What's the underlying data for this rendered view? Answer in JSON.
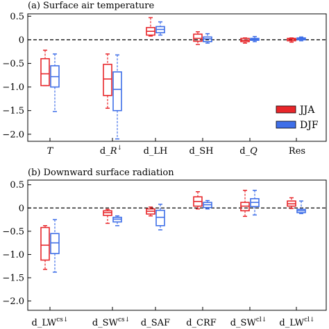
{
  "chart_data": [
    {
      "type": "box",
      "title": "(a) Surface air temperature",
      "ylim": [
        -2.15,
        0.55
      ],
      "yticks": [
        0.5,
        0,
        -0.5,
        -1.0,
        -1.5,
        -2.0
      ],
      "ytick_labels": [
        "0.5",
        "0",
        "−0.5",
        "−1.0",
        "−1.5",
        "−2.0"
      ],
      "zero_line": true,
      "categories": [
        {
          "label": "T",
          "italic": true,
          "sup": ""
        },
        {
          "label": "d_",
          "suffix_italic": "R",
          "sup": "↓"
        },
        {
          "label": "d_LH",
          "sup": ""
        },
        {
          "label": "d_SH",
          "sup": ""
        },
        {
          "label": "d_",
          "suffix_italic": "Q",
          "sup": ""
        },
        {
          "label": "Res",
          "sup": ""
        }
      ],
      "series": [
        {
          "name": "JJA",
          "color": "#e8262a",
          "boxes": [
            {
              "min": -0.97,
              "q1": -0.97,
              "median": -0.72,
              "q3": -0.4,
              "max": -0.22
            },
            {
              "min": -1.45,
              "q1": -1.18,
              "median": -0.83,
              "q3": -0.52,
              "max": -0.3
            },
            {
              "min": 0.08,
              "q1": 0.1,
              "median": 0.18,
              "q3": 0.26,
              "max": 0.47
            },
            {
              "min": -0.1,
              "q1": -0.03,
              "median": 0.03,
              "q3": 0.12,
              "max": 0.17
            },
            {
              "min": -0.07,
              "q1": -0.04,
              "median": -0.01,
              "q3": 0.03,
              "max": 0.04
            },
            {
              "min": -0.05,
              "q1": -0.02,
              "median": 0.01,
              "q3": 0.03,
              "max": 0.04
            }
          ]
        },
        {
          "name": "DJF",
          "color": "#3f6fe8",
          "boxes": [
            {
              "min": -1.52,
              "q1": -1.0,
              "median": -0.78,
              "q3": -0.55,
              "max": -0.3
            },
            {
              "min": -2.1,
              "q1": -1.5,
              "median": -1.05,
              "q3": -0.68,
              "max": -0.32
            },
            {
              "min": 0.1,
              "q1": 0.15,
              "median": 0.22,
              "q3": 0.28,
              "max": 0.38
            },
            {
              "min": -0.07,
              "q1": -0.04,
              "median": 0.02,
              "q3": 0.06,
              "max": 0.13
            },
            {
              "min": -0.04,
              "q1": -0.01,
              "median": 0.01,
              "q3": 0.03,
              "max": 0.07
            },
            {
              "min": -0.02,
              "q1": 0.0,
              "median": 0.02,
              "q3": 0.04,
              "max": 0.06
            }
          ]
        }
      ],
      "legend": {
        "position": "lower-right",
        "entries": [
          "JJA",
          "DJF"
        ]
      }
    },
    {
      "type": "box",
      "title": "(b) Downward surface radiation",
      "ylim": [
        -2.2,
        0.6
      ],
      "yticks": [
        0.5,
        0,
        -0.5,
        -1.0,
        -1.5,
        -2.0
      ],
      "ytick_labels": [
        "0.5",
        "0",
        "−0.5",
        "−1.0",
        "−1.5",
        "−2.0"
      ],
      "zero_line": true,
      "categories": [
        {
          "label": "d_LW",
          "sup": "cs↓"
        },
        {
          "label": "d_SW",
          "sup": "cs↓"
        },
        {
          "label": "d_SAF",
          "sup": ""
        },
        {
          "label": "d_CRF",
          "sup": ""
        },
        {
          "label": "d_SW",
          "sup": "cl↓"
        },
        {
          "label": "d_LW",
          "sup": "cl↓"
        }
      ],
      "series": [
        {
          "name": "JJA",
          "color": "#e8262a",
          "boxes": [
            {
              "min": -1.32,
              "q1": -1.12,
              "median": -0.8,
              "q3": -0.42,
              "max": -0.38
            },
            {
              "min": -0.33,
              "q1": -0.16,
              "median": -0.1,
              "q3": -0.06,
              "max": -0.03
            },
            {
              "min": -0.17,
              "q1": -0.13,
              "median": -0.07,
              "q3": -0.02,
              "max": 0.02
            },
            {
              "min": -0.02,
              "q1": 0.04,
              "median": 0.14,
              "q3": 0.24,
              "max": 0.35
            },
            {
              "min": -0.18,
              "q1": -0.06,
              "median": 0.04,
              "q3": 0.12,
              "max": 0.38
            },
            {
              "min": -0.01,
              "q1": 0.04,
              "median": 0.09,
              "q3": 0.15,
              "max": 0.22
            }
          ]
        },
        {
          "name": "DJF",
          "color": "#3f6fe8",
          "boxes": [
            {
              "min": -1.38,
              "q1": -0.98,
              "median": -0.75,
              "q3": -0.55,
              "max": -0.25
            },
            {
              "min": -0.38,
              "q1": -0.3,
              "median": -0.24,
              "q3": -0.2,
              "max": -0.17
            },
            {
              "min": -0.47,
              "q1": -0.38,
              "median": -0.2,
              "q3": -0.05,
              "max": 0.08
            },
            {
              "min": -0.02,
              "q1": 0.01,
              "median": 0.07,
              "q3": 0.12,
              "max": 0.16
            },
            {
              "min": -0.15,
              "q1": 0.03,
              "median": 0.12,
              "q3": 0.2,
              "max": 0.38
            },
            {
              "min": -0.12,
              "q1": -0.1,
              "median": -0.06,
              "q3": -0.03,
              "max": 0.15
            }
          ]
        }
      ],
      "legend": null
    }
  ]
}
